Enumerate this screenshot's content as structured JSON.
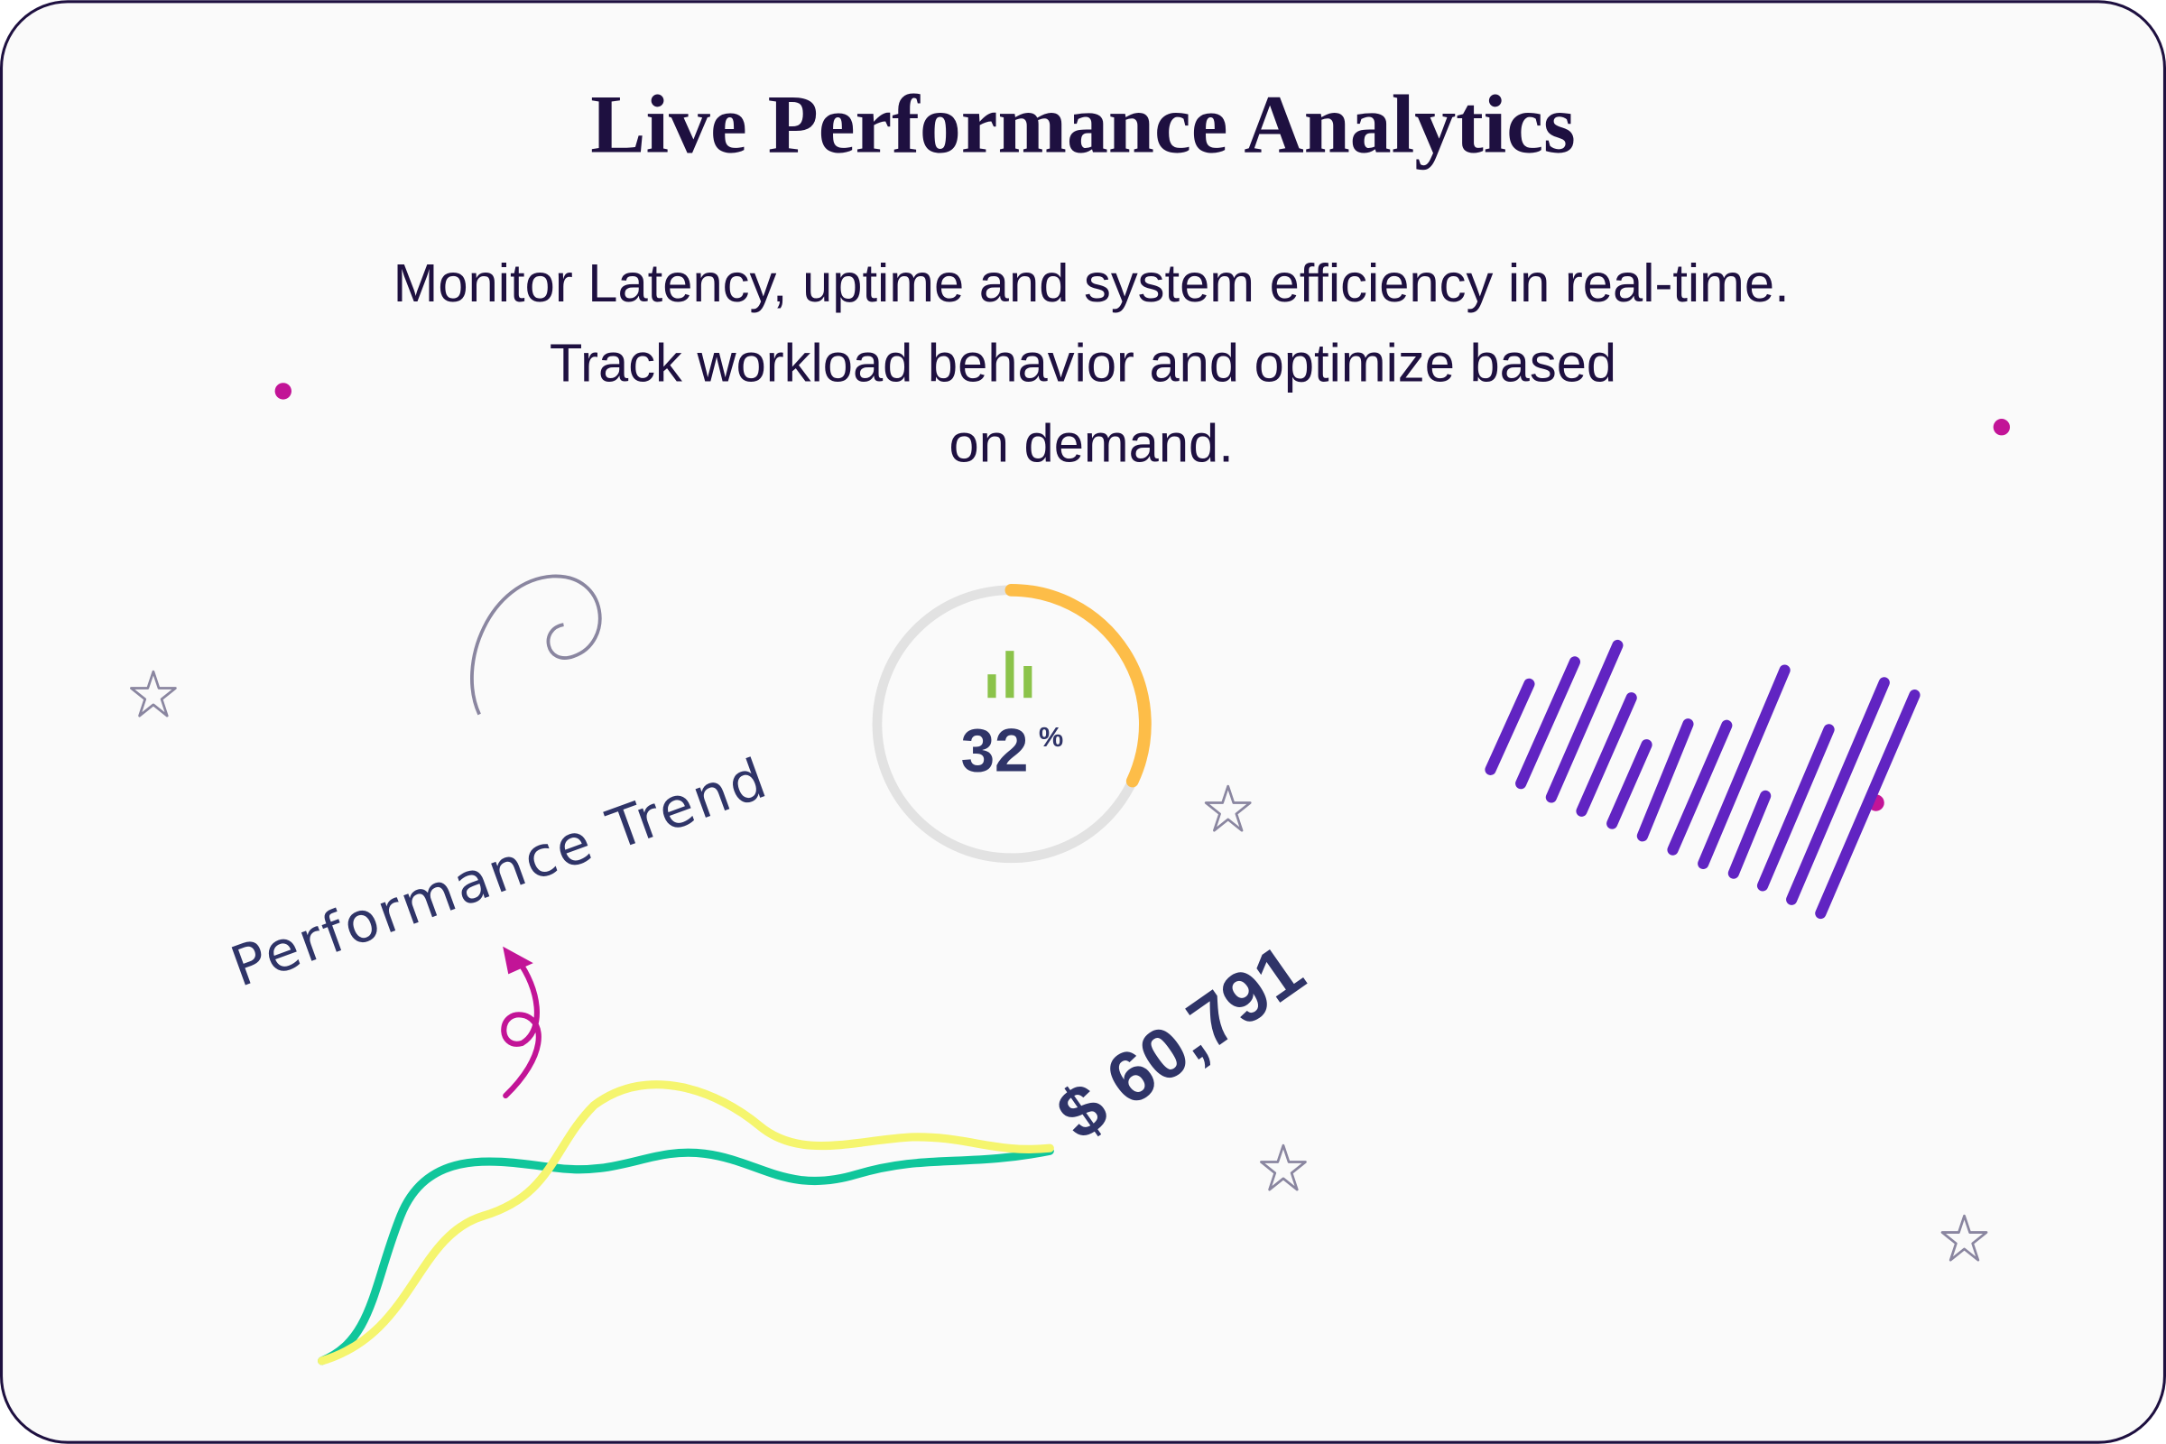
{
  "header": {
    "title": "Live Performance Analytics",
    "subtitle": [
      "Monitor Latency, uptime and system efficiency in real-time.",
      "Track workload behavior and optimize based",
      "on demand."
    ]
  },
  "gauge": {
    "value": 32,
    "unit": "%"
  },
  "trend_label": "Performance Trend",
  "amount": "$ 60,791"
}
